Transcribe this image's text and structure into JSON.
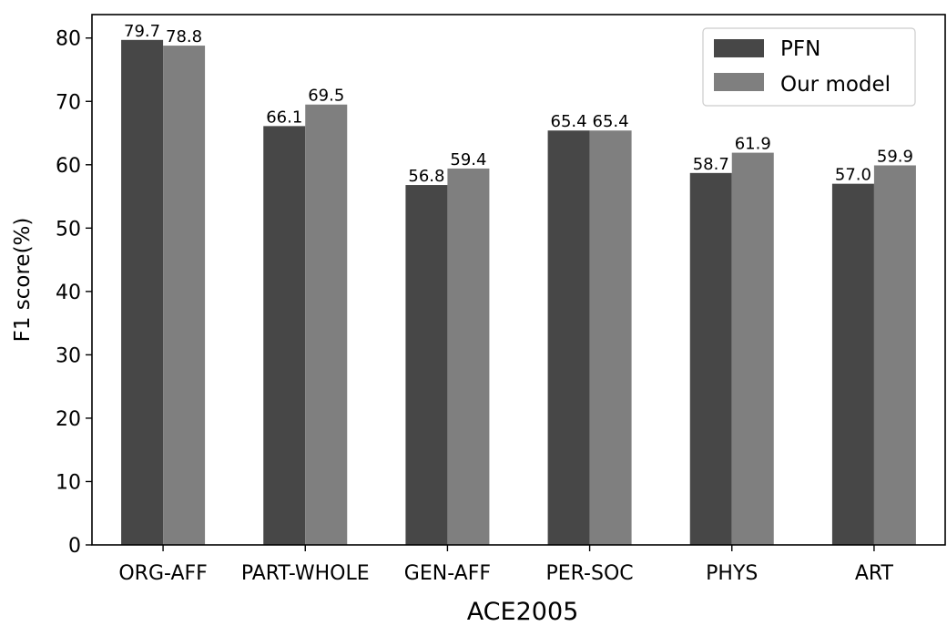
{
  "chart_data": {
    "type": "bar",
    "xlabel": "ACE2005",
    "ylabel": "F1 score(%)",
    "ylim": [
      0,
      83.7
    ],
    "yticks": [
      0,
      10,
      20,
      30,
      40,
      50,
      60,
      70,
      80
    ],
    "categories": [
      "ORG-AFF",
      "PART-WHOLE",
      "GEN-AFF",
      "PER-SOC",
      "PHYS",
      "ART"
    ],
    "series": [
      {
        "name": "PFN",
        "color": "#474747",
        "values": [
          79.7,
          66.1,
          56.8,
          65.4,
          58.7,
          57.0
        ],
        "labels": [
          "79.7",
          "66.1",
          "56.8",
          "65.4",
          "58.7",
          "57.0"
        ]
      },
      {
        "name": "Our model",
        "color": "#7f7f7f",
        "values": [
          78.8,
          69.5,
          59.4,
          65.4,
          61.9,
          59.9
        ],
        "labels": [
          "78.8",
          "69.5",
          "59.4",
          "65.4",
          "61.9",
          "59.9"
        ]
      }
    ],
    "legend_position": "top-right",
    "grid": false
  }
}
